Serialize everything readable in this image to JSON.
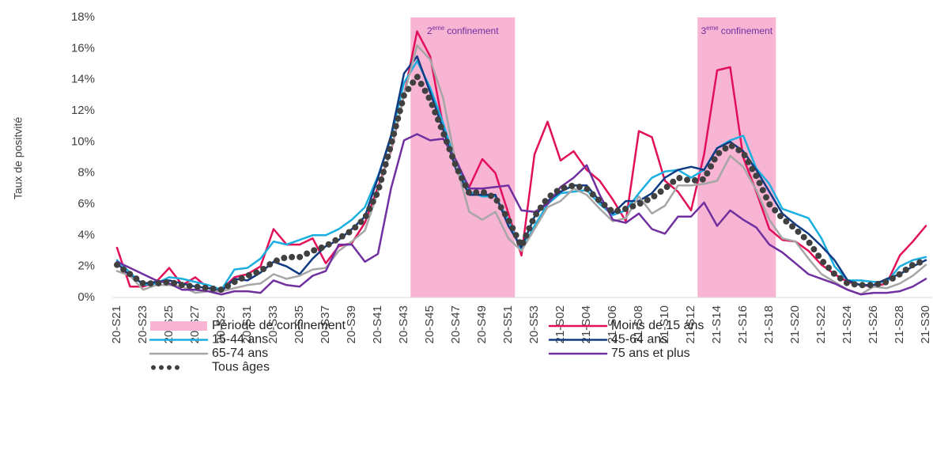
{
  "chart_data": {
    "type": "line",
    "y_label": "Taux de positvité",
    "categories": [
      "20-S21",
      null,
      "20-S23",
      null,
      "20-S25",
      null,
      "20-S27",
      null,
      "20-S29",
      null,
      "20-S31",
      null,
      "20-S33",
      null,
      "20-S35",
      null,
      "20-S37",
      null,
      "20-S39",
      null,
      "20-S41",
      null,
      "20-S43",
      null,
      "20-S45",
      null,
      "20-S47",
      null,
      "20-S49",
      null,
      "20-S51",
      null,
      "20-S53",
      null,
      "21-S02",
      null,
      "21-S04",
      null,
      "21-S06",
      null,
      "21-S08",
      null,
      "21-S10",
      null,
      "21-S12",
      null,
      "21-S14",
      null,
      "21-S16",
      null,
      "21-S18",
      null,
      "21-S20",
      null,
      "21-S22",
      null,
      "21-S24",
      null,
      "21-S26",
      null,
      "21-S28",
      null,
      "21-S30"
    ],
    "ylim": [
      0,
      18
    ],
    "yticks": [
      {
        "value": 0,
        "label": "0%"
      },
      {
        "value": 2,
        "label": "2%"
      },
      {
        "value": 4,
        "label": "4%"
      },
      {
        "value": 6,
        "label": "6%"
      },
      {
        "value": 8,
        "label": "8%"
      },
      {
        "value": 10,
        "label": "10%"
      },
      {
        "value": 12,
        "label": "12%"
      },
      {
        "value": 14,
        "label": "14%"
      },
      {
        "value": 16,
        "label": "16%"
      },
      {
        "value": 18,
        "label": "18%"
      }
    ],
    "confinement": {
      "name": "Période de confinement",
      "color": "#f8b4d3",
      "label_color": "#7030a0",
      "periods": [
        {
          "number": "2",
          "sup": "eme",
          "text": "confinement",
          "x_range": [
            22.5,
            30.5
          ]
        },
        {
          "number": "3",
          "sup": "eme",
          "text": "confinement",
          "x_range": [
            44.5,
            50.5
          ]
        }
      ]
    },
    "series": [
      {
        "name": "Moins de 15 ans",
        "color": "#e2105a",
        "style": "solid",
        "values": [
          3.2,
          0.7,
          0.7,
          1.0,
          1.9,
          0.8,
          1.3,
          0.6,
          0.5,
          1.3,
          1.5,
          2.0,
          4.4,
          3.4,
          3.4,
          3.8,
          2.2,
          3.3,
          3.5,
          4.8,
          7.1,
          9.4,
          13.0,
          17.1,
          15.5,
          11.0,
          8.5,
          7.1,
          8.9,
          8.0,
          5.4,
          2.7,
          9.2,
          11.3,
          8.8,
          9.4,
          8.2,
          7.5,
          6.3,
          4.9,
          10.7,
          10.3,
          7.5,
          6.8,
          5.6,
          9.2,
          14.6,
          14.8,
          9.0,
          6.8,
          4.4,
          3.7,
          3.6,
          3.0,
          2.1,
          1.5,
          1.0,
          0.8,
          0.7,
          0.9,
          2.7,
          3.6,
          4.6
        ]
      },
      {
        "name": "15-44 ans",
        "color": "#1aafe0",
        "style": "solid",
        "values": [
          2.4,
          1.6,
          0.8,
          0.9,
          1.3,
          1.2,
          1.0,
          0.8,
          0.5,
          1.8,
          1.9,
          2.5,
          3.6,
          3.4,
          3.7,
          4.0,
          4.0,
          4.4,
          5.0,
          5.8,
          7.8,
          10.2,
          13.8,
          15.2,
          13.5,
          11.2,
          8.6,
          6.8,
          6.5,
          6.5,
          5.0,
          3.0,
          4.6,
          6.0,
          6.7,
          6.8,
          6.9,
          6.0,
          5.3,
          5.6,
          6.7,
          7.7,
          8.1,
          8.2,
          7.7,
          8.2,
          9.6,
          10.1,
          10.4,
          8.3,
          7.3,
          5.7,
          5.4,
          5.1,
          3.8,
          2.0,
          1.1,
          1.1,
          1.0,
          1.0,
          2.0,
          2.4,
          2.6
        ]
      },
      {
        "name": "45-64 ans",
        "color": "#0f3b84",
        "style": "solid",
        "values": [
          2.2,
          1.4,
          0.9,
          1.0,
          1.1,
          0.9,
          0.7,
          0.6,
          0.4,
          1.2,
          1.1,
          1.6,
          2.3,
          2.0,
          1.5,
          2.5,
          3.3,
          3.7,
          4.4,
          5.2,
          7.7,
          10.4,
          14.4,
          15.5,
          13.2,
          10.8,
          8.2,
          6.6,
          6.6,
          6.6,
          4.6,
          3.2,
          5.2,
          6.2,
          6.8,
          7.2,
          7.2,
          6.2,
          5.4,
          6.2,
          6.2,
          6.7,
          7.7,
          8.2,
          8.4,
          8.2,
          9.6,
          10.0,
          9.4,
          8.2,
          6.8,
          5.4,
          4.7,
          4.1,
          3.3,
          2.4,
          1.1,
          0.8,
          0.8,
          1.2,
          1.5,
          2.0,
          2.4
        ]
      },
      {
        "name": "65-74 ans",
        "color": "#a6a6a6",
        "style": "solid",
        "values": [
          1.7,
          1.4,
          0.5,
          0.8,
          0.8,
          0.7,
          0.3,
          0.4,
          0.4,
          0.6,
          0.8,
          0.9,
          1.5,
          1.2,
          1.4,
          1.8,
          1.9,
          3.0,
          3.6,
          4.3,
          6.8,
          9.5,
          13.0,
          16.2,
          15.3,
          12.8,
          8.5,
          5.5,
          5.0,
          5.5,
          3.8,
          3.0,
          4.4,
          5.8,
          6.2,
          7.0,
          6.6,
          5.7,
          4.9,
          5.1,
          6.5,
          5.4,
          5.9,
          7.2,
          7.2,
          7.3,
          7.5,
          9.1,
          8.4,
          6.9,
          5.0,
          3.8,
          3.6,
          2.5,
          1.5,
          1.0,
          0.5,
          0.2,
          0.7,
          0.6,
          0.9,
          1.4,
          2.1
        ]
      },
      {
        "name": "75 ans et plus",
        "color": "#7030a0",
        "style": "solid",
        "values": [
          2.3,
          1.9,
          1.5,
          1.1,
          0.9,
          0.5,
          0.5,
          0.4,
          0.2,
          0.4,
          0.4,
          0.3,
          1.1,
          0.8,
          0.7,
          1.4,
          1.7,
          3.4,
          3.4,
          2.3,
          2.8,
          7.0,
          10.1,
          10.5,
          10.1,
          10.2,
          8.8,
          7.0,
          7.0,
          7.1,
          7.2,
          5.6,
          5.5,
          6.0,
          7.1,
          7.7,
          8.5,
          6.6,
          5.0,
          4.8,
          5.4,
          4.4,
          4.1,
          5.2,
          5.2,
          6.1,
          4.6,
          5.6,
          5.0,
          4.5,
          3.4,
          2.9,
          2.2,
          1.5,
          1.2,
          0.9,
          0.5,
          0.2,
          0.3,
          0.3,
          0.4,
          0.7,
          1.2
        ]
      },
      {
        "name": "Tous âges",
        "color": "#404040",
        "style": "dotted",
        "values": [
          2.1,
          1.5,
          0.9,
          0.9,
          1.0,
          0.8,
          0.7,
          0.6,
          0.5,
          1.0,
          1.4,
          1.7,
          2.3,
          2.6,
          2.6,
          3.0,
          3.3,
          3.8,
          4.3,
          5.1,
          6.8,
          9.8,
          13.0,
          14.2,
          12.7,
          10.6,
          8.4,
          6.7,
          6.8,
          6.4,
          5.0,
          3.3,
          5.2,
          6.4,
          7.0,
          7.2,
          7.0,
          6.2,
          5.5,
          5.7,
          6.0,
          6.4,
          7.0,
          7.7,
          7.5,
          7.6,
          9.2,
          9.8,
          9.3,
          7.8,
          6.0,
          5.1,
          4.4,
          3.6,
          2.4,
          1.5,
          0.9,
          0.8,
          0.8,
          1.0,
          1.5,
          2.1,
          2.4
        ]
      }
    ]
  }
}
